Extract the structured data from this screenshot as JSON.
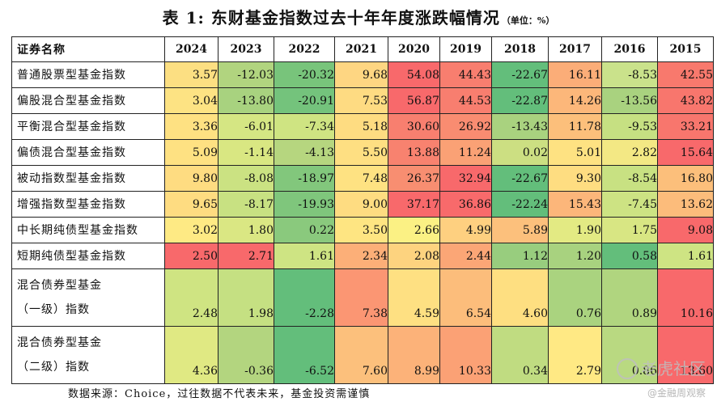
{
  "title": "表 1: 东财基金指数过去十年年度涨跌幅情况",
  "unit_note": "（单位：%）",
  "table": {
    "name_header": "证券名称",
    "years": [
      "2024",
      "2023",
      "2022",
      "2021",
      "2020",
      "2019",
      "2018",
      "2017",
      "2016",
      "2015"
    ],
    "rows": [
      {
        "name": [
          "普通股票型基金指数"
        ],
        "values": [
          "3.57",
          "-12.03",
          "-20.32",
          "9.68",
          "54.08",
          "44.43",
          "-22.67",
          "16.11",
          "-8.53",
          "42.55"
        ],
        "colors": [
          "#fcdf82",
          "#b1d47f",
          "#78c47b",
          "#fed682",
          "#f8696b",
          "#f87e6f",
          "#63be7b",
          "#fbad78",
          "#cae28b",
          "#f8796d"
        ]
      },
      {
        "name": [
          "偏股混合型基金指数"
        ],
        "values": [
          "3.04",
          "-13.80",
          "-20.91",
          "7.53",
          "56.87",
          "44.53",
          "-22.87",
          "14.26",
          "-13.56",
          "43.82"
        ],
        "colors": [
          "#fde383",
          "#a8d27f",
          "#74c37c",
          "#fedb82",
          "#f8696b",
          "#f87e6f",
          "#63be7b",
          "#fcb77a",
          "#a9d27f",
          "#f8766d"
        ]
      },
      {
        "name": [
          "平衡混合型基金指数"
        ],
        "values": [
          "3.36",
          "-6.01",
          "-7.34",
          "5.18",
          "30.60",
          "26.92",
          "-13.43",
          "11.78",
          "-9.53",
          "33.21"
        ],
        "colors": [
          "#fee182",
          "#d5e683",
          "#cfe482",
          "#fedc81",
          "#f87f6f",
          "#f98c71",
          "#a9d27f",
          "#fcbf7b",
          "#c6e082",
          "#f8766d"
        ]
      },
      {
        "name": [
          "偏债混合型基金指数"
        ],
        "values": [
          "5.09",
          "-1.14",
          "-4.13",
          "5.50",
          "13.88",
          "11.24",
          "0.02",
          "5.01",
          "2.82",
          "15.64"
        ],
        "colors": [
          "#fee182",
          "#d9e782",
          "#b6d67f",
          "#fedf82",
          "#f8826f",
          "#faa175",
          "#ccdf82",
          "#fee282",
          "#f3e884",
          "#f8696b"
        ]
      },
      {
        "name": [
          "被动指数型基金指数"
        ],
        "values": [
          "9.80",
          "-8.08",
          "-18.97",
          "7.48",
          "26.37",
          "32.94",
          "-22.67",
          "9.30",
          "-8.54",
          "16.80"
        ],
        "colors": [
          "#fedc81",
          "#cbe282",
          "#82c77c",
          "#fee282",
          "#f88e71",
          "#f8696b",
          "#63be7b",
          "#fedd81",
          "#c8e182",
          "#fcbf7b"
        ]
      },
      {
        "name": [
          "增强指数型基金指数"
        ],
        "values": [
          "9.65",
          "-8.17",
          "-19.93",
          "9.00",
          "37.17",
          "36.86",
          "-22.24",
          "15.43",
          "-7.45",
          "13.62"
        ],
        "colors": [
          "#fedc81",
          "#c8e182",
          "#7fc67c",
          "#fedc81",
          "#f8696b",
          "#f86a6b",
          "#63be7b",
          "#fcb67a",
          "#cde383",
          "#fcbc7b"
        ]
      },
      {
        "name": [
          "中长期纯债型基金指数"
        ],
        "values": [
          "3.02",
          "1.80",
          "0.22",
          "3.50",
          "2.66",
          "4.99",
          "5.89",
          "1.90",
          "1.75",
          "9.08"
        ],
        "colors": [
          "#feea84",
          "#dae783",
          "#8ac97d",
          "#fee582",
          "#fbf184",
          "#fed080",
          "#fcc07c",
          "#e3ea83",
          "#d8e683",
          "#f8696b"
        ]
      },
      {
        "name": [
          "短期纯债型基金指数"
        ],
        "values": [
          "2.50",
          "2.71",
          "1.61",
          "2.34",
          "2.08",
          "2.44",
          "1.12",
          "1.20",
          "0.58",
          "1.61"
        ],
        "colors": [
          "#f8696b",
          "#f8696b",
          "#cee483",
          "#fcaf78",
          "#fdd37f",
          "#fba676",
          "#98cd7e",
          "#a8d27f",
          "#63be7b",
          "#cee483"
        ]
      },
      {
        "name": [
          "混合债券型基金",
          "（一级）指数"
        ],
        "values": [
          "2.48",
          "1.98",
          "-2.28",
          "7.38",
          "4.59",
          "6.54",
          "4.60",
          "0.76",
          "0.89",
          "10.16"
        ],
        "colors": [
          "#cfe482",
          "#c5e082",
          "#63be7b",
          "#fb9673",
          "#fee082",
          "#fcbd7b",
          "#fedf81",
          "#aad37f",
          "#b0d57f",
          "#f8696b"
        ]
      },
      {
        "name": [
          "混合债券型基金",
          "（二级）指数"
        ],
        "values": [
          "4.36",
          "-0.36",
          "-6.52",
          "7.60",
          "8.99",
          "10.33",
          "0.34",
          "2.79",
          "0.86",
          "13.60"
        ],
        "colors": [
          "#e0e983",
          "#b3d57f",
          "#63be7b",
          "#fcc07c",
          "#fcb279",
          "#fba175",
          "#c0dc81",
          "#ffe984",
          "#b9d981",
          "#f8696b"
        ]
      }
    ]
  },
  "source": "数据来源：Choice，过往数据不代表未来，基金投资需谨慎",
  "watermark": {
    "main": "老虎社区",
    "sub": "@金融周观察"
  }
}
